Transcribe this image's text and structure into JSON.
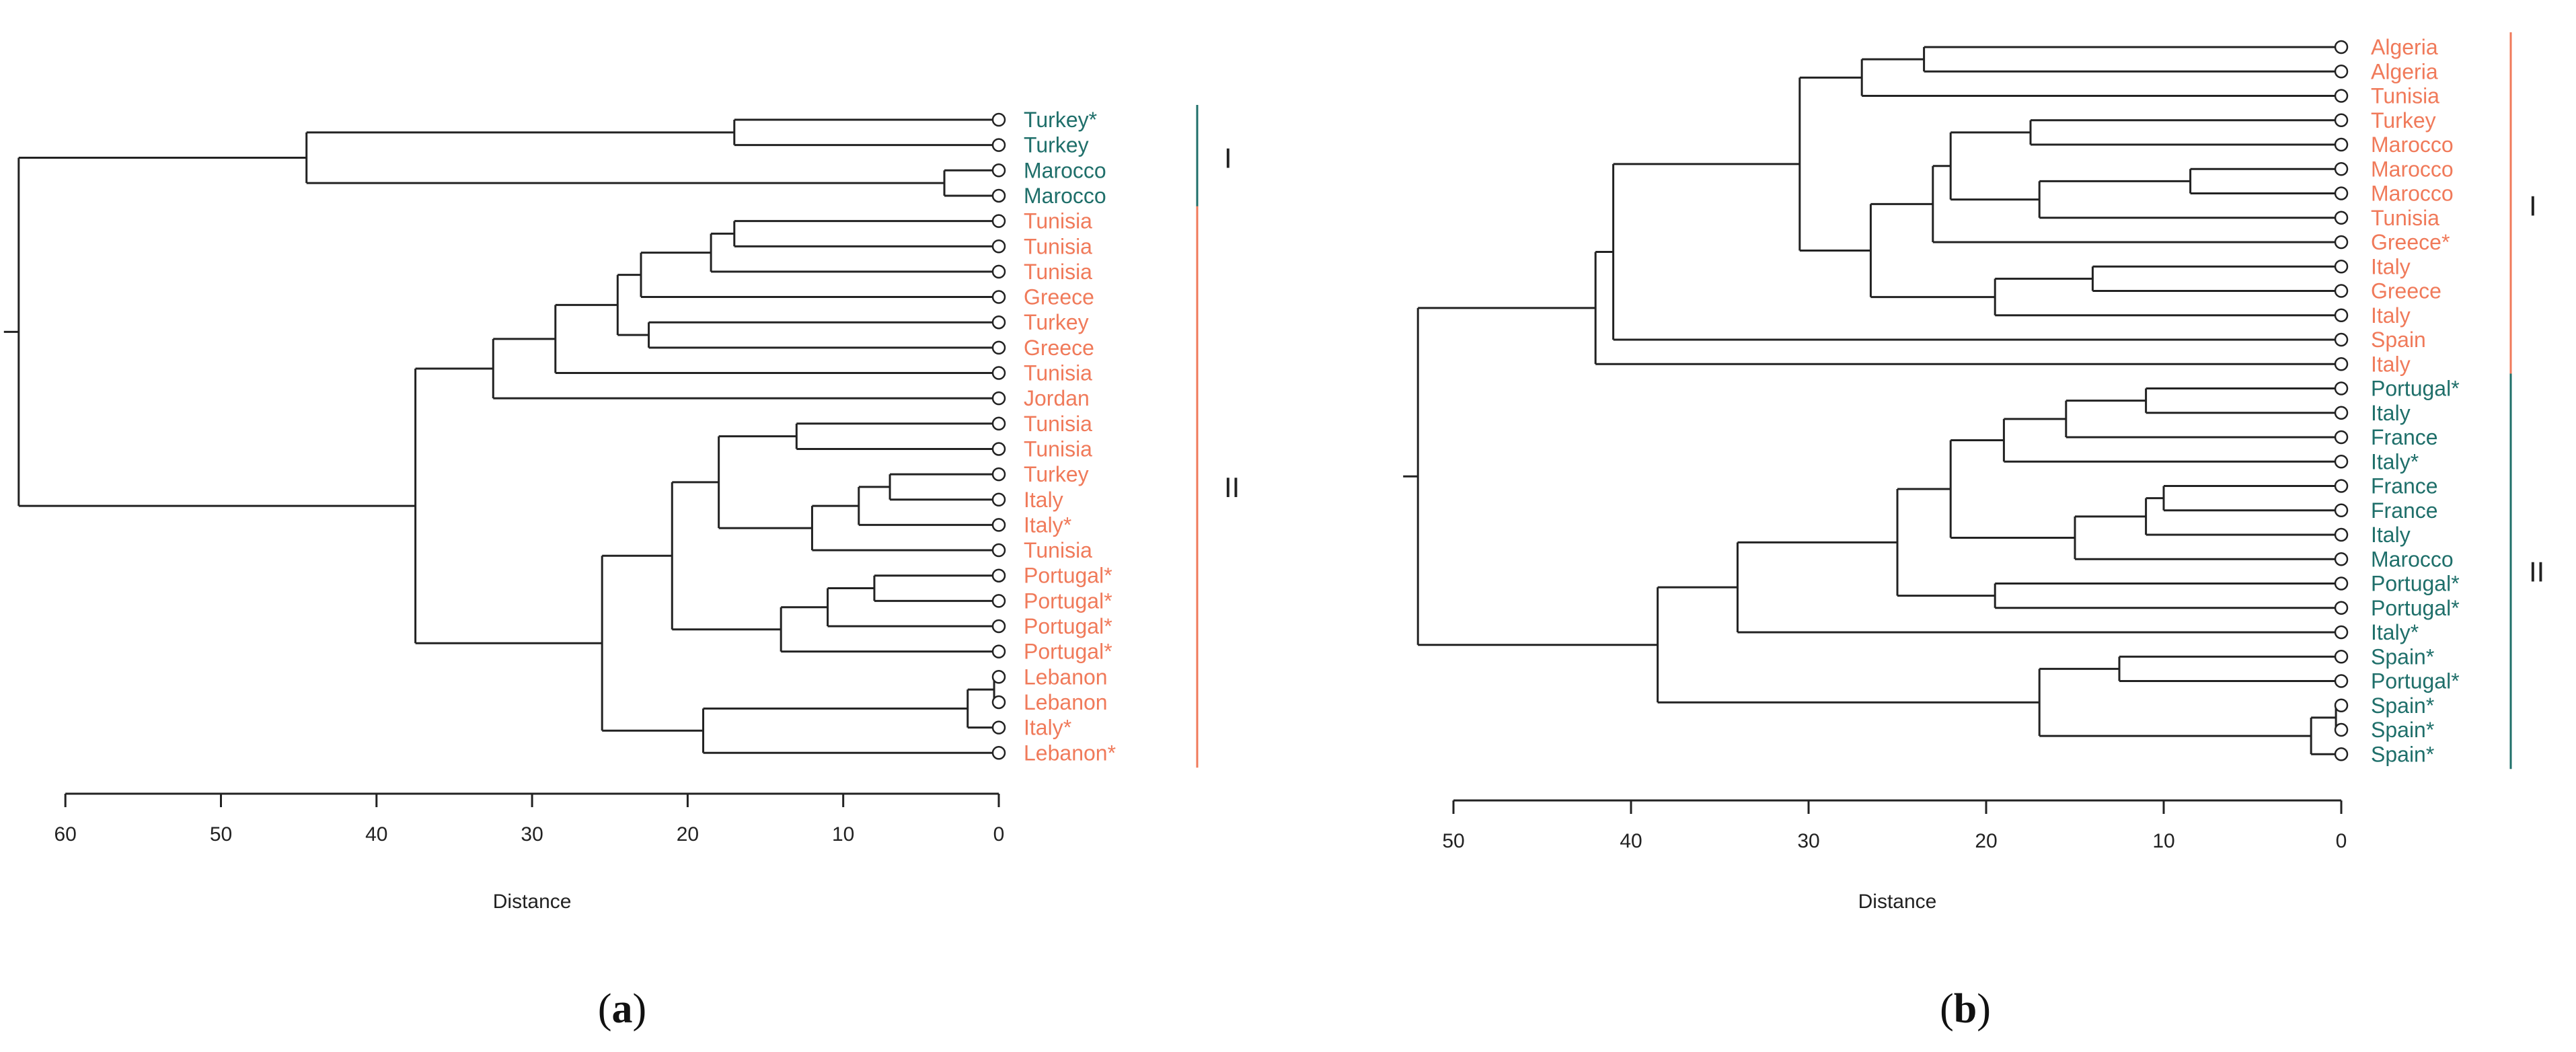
{
  "colors": {
    "group1_a": "#1f6f6a",
    "group2_a": "#f07a5a",
    "group1_b": "#f07a5a",
    "group2_b": "#1f6f6a",
    "line": "#222222"
  },
  "chart_data": [
    {
      "type": "dendrogram",
      "panel": "a",
      "caption": "(a)",
      "caption_letter": "a",
      "xlabel": "Distance",
      "xlim": [
        0,
        63
      ],
      "xticks": [
        60,
        50,
        40,
        30,
        20,
        10,
        0
      ],
      "leaves": [
        {
          "label": "Turkey*",
          "group": 1
        },
        {
          "label": "Turkey",
          "group": 1
        },
        {
          "label": "Marocco",
          "group": 1
        },
        {
          "label": "Marocco",
          "group": 1
        },
        {
          "label": "Tunisia",
          "group": 2
        },
        {
          "label": "Tunisia",
          "group": 2
        },
        {
          "label": "Tunisia",
          "group": 2
        },
        {
          "label": "Greece",
          "group": 2
        },
        {
          "label": "Turkey",
          "group": 2
        },
        {
          "label": "Greece",
          "group": 2
        },
        {
          "label": "Tunisia",
          "group": 2
        },
        {
          "label": "Jordan",
          "group": 2
        },
        {
          "label": "Tunisia",
          "group": 2
        },
        {
          "label": "Tunisia",
          "group": 2
        },
        {
          "label": "Turkey",
          "group": 2
        },
        {
          "label": "Italy",
          "group": 2
        },
        {
          "label": "Italy*",
          "group": 2
        },
        {
          "label": "Tunisia",
          "group": 2
        },
        {
          "label": "Portugal*",
          "group": 2
        },
        {
          "label": "Portugal*",
          "group": 2
        },
        {
          "label": "Portugal*",
          "group": 2
        },
        {
          "label": "Portugal*",
          "group": 2
        },
        {
          "label": "Lebanon",
          "group": 2
        },
        {
          "label": "Lebanon",
          "group": 2
        },
        {
          "label": "Italy*",
          "group": 2
        },
        {
          "label": "Lebanon*",
          "group": 2
        }
      ],
      "clusters": [
        {
          "label": "I",
          "from": 0,
          "to": 3
        },
        {
          "label": "II",
          "from": 4,
          "to": 25
        }
      ],
      "merges": [
        {
          "a": "L0",
          "b": "L1",
          "h": 17
        },
        {
          "a": "L2",
          "b": "L3",
          "h": 3.5
        },
        {
          "a": "M0",
          "b": "M1",
          "h": 44.5
        },
        {
          "a": "L4",
          "b": "L5",
          "h": 17
        },
        {
          "a": "M3",
          "b": "L6",
          "h": 18.5
        },
        {
          "a": "M4",
          "b": "L7",
          "h": 23
        },
        {
          "a": "L8",
          "b": "L9",
          "h": 22.5
        },
        {
          "a": "M5",
          "b": "M6",
          "h": 24.5
        },
        {
          "a": "M7",
          "b": "L10",
          "h": 28.5
        },
        {
          "a": "M8",
          "b": "L11",
          "h": 32.5
        },
        {
          "a": "L12",
          "b": "L13",
          "h": 13
        },
        {
          "a": "L14",
          "b": "L15",
          "h": 7
        },
        {
          "a": "M11",
          "b": "L16",
          "h": 9
        },
        {
          "a": "M12",
          "b": "L17",
          "h": 12
        },
        {
          "a": "M10",
          "b": "M13",
          "h": 18
        },
        {
          "a": "L18",
          "b": "L19",
          "h": 8
        },
        {
          "a": "M15",
          "b": "L20",
          "h": 11
        },
        {
          "a": "M16",
          "b": "L21",
          "h": 14
        },
        {
          "a": "M14",
          "b": "M17",
          "h": 21
        },
        {
          "a": "L22",
          "b": "L23",
          "h": 0.3
        },
        {
          "a": "M19",
          "b": "L24",
          "h": 2
        },
        {
          "a": "M20",
          "b": "L25",
          "h": 19
        },
        {
          "a": "M18",
          "b": "M21",
          "h": 25.5
        },
        {
          "a": "M9",
          "b": "M22",
          "h": 37.5
        },
        {
          "a": "M2",
          "b": "M23",
          "h": 63
        }
      ]
    },
    {
      "type": "dendrogram",
      "panel": "b",
      "caption": "(b)",
      "caption_letter": "b",
      "xlabel": "Distance",
      "xlim": [
        0,
        52
      ],
      "xticks": [
        50,
        40,
        30,
        20,
        10,
        0
      ],
      "leaves": [
        {
          "label": "Algeria",
          "group": 1
        },
        {
          "label": "Algeria",
          "group": 1
        },
        {
          "label": "Tunisia",
          "group": 1
        },
        {
          "label": "Turkey",
          "group": 1
        },
        {
          "label": "Marocco",
          "group": 1
        },
        {
          "label": "Marocco",
          "group": 1
        },
        {
          "label": "Marocco",
          "group": 1
        },
        {
          "label": "Tunisia",
          "group": 1
        },
        {
          "label": "Greece*",
          "group": 1
        },
        {
          "label": "Italy",
          "group": 1
        },
        {
          "label": "Greece",
          "group": 1
        },
        {
          "label": "Italy",
          "group": 1
        },
        {
          "label": "Spain",
          "group": 1
        },
        {
          "label": "Italy",
          "group": 1
        },
        {
          "label": "Portugal*",
          "group": 2
        },
        {
          "label": "Italy",
          "group": 2
        },
        {
          "label": "France",
          "group": 2
        },
        {
          "label": "Italy*",
          "group": 2
        },
        {
          "label": "France",
          "group": 2
        },
        {
          "label": "France",
          "group": 2
        },
        {
          "label": "Italy",
          "group": 2
        },
        {
          "label": "Marocco",
          "group": 2
        },
        {
          "label": "Portugal*",
          "group": 2
        },
        {
          "label": "Portugal*",
          "group": 2
        },
        {
          "label": "Italy*",
          "group": 2
        },
        {
          "label": "Spain*",
          "group": 2
        },
        {
          "label": "Portugal*",
          "group": 2
        },
        {
          "label": "Spain*",
          "group": 2
        },
        {
          "label": "Spain*",
          "group": 2
        },
        {
          "label": "Spain*",
          "group": 2
        }
      ],
      "clusters": [
        {
          "label": "I",
          "from": 0,
          "to": 13
        },
        {
          "label": "II",
          "from": 14,
          "to": 29
        }
      ],
      "merges": [
        {
          "a": "L0",
          "b": "L1",
          "h": 23.5
        },
        {
          "a": "M0",
          "b": "L2",
          "h": 27
        },
        {
          "a": "L3",
          "b": "L4",
          "h": 17.5
        },
        {
          "a": "L5",
          "b": "L6",
          "h": 8.5
        },
        {
          "a": "M3",
          "b": "L7",
          "h": 17
        },
        {
          "a": "M2",
          "b": "M4",
          "h": 22
        },
        {
          "a": "M5",
          "b": "L8",
          "h": 23
        },
        {
          "a": "L9",
          "b": "L10",
          "h": 14
        },
        {
          "a": "M7",
          "b": "L11",
          "h": 19.5
        },
        {
          "a": "M6",
          "b": "M8",
          "h": 26.5
        },
        {
          "a": "M1",
          "b": "M9",
          "h": 30.5
        },
        {
          "a": "M10",
          "b": "L12",
          "h": 41
        },
        {
          "a": "M11",
          "b": "L13",
          "h": 42
        },
        {
          "a": "L14",
          "b": "L15",
          "h": 11
        },
        {
          "a": "M13",
          "b": "L16",
          "h": 15.5
        },
        {
          "a": "M14",
          "b": "L17",
          "h": 19
        },
        {
          "a": "L18",
          "b": "L19",
          "h": 10
        },
        {
          "a": "M16",
          "b": "L20",
          "h": 11
        },
        {
          "a": "M17",
          "b": "L21",
          "h": 15
        },
        {
          "a": "M15",
          "b": "M18",
          "h": 22
        },
        {
          "a": "L22",
          "b": "L23",
          "h": 19.5
        },
        {
          "a": "M19",
          "b": "M20",
          "h": 25
        },
        {
          "a": "M21",
          "b": "L24",
          "h": 34
        },
        {
          "a": "L25",
          "b": "L26",
          "h": 12.5
        },
        {
          "a": "L27",
          "b": "L28",
          "h": 0.3
        },
        {
          "a": "M24",
          "b": "L29",
          "h": 1.7
        },
        {
          "a": "M23",
          "b": "M25",
          "h": 17
        },
        {
          "a": "M22",
          "b": "M26",
          "h": 38.5
        },
        {
          "a": "M12",
          "b": "M27",
          "h": 52
        }
      ]
    }
  ]
}
